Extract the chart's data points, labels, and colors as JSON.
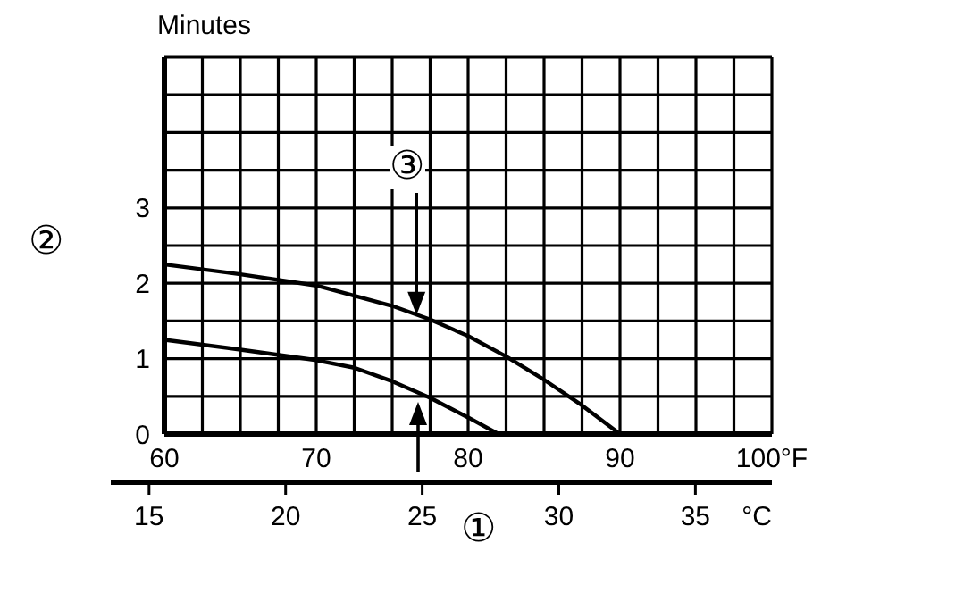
{
  "chart_data": {
    "type": "line",
    "ylabel": "Minutes",
    "xlim": [
      60,
      100
    ],
    "xticks": [
      60,
      {
        "value": 62.5,
        "label": null
      },
      {
        "value": 65,
        "label": null
      },
      {
        "value": 67.5,
        "label": null
      },
      70,
      {
        "value": 72.5,
        "label": null
      },
      {
        "value": 75,
        "label": null
      },
      {
        "value": 77.5,
        "label": null
      },
      80,
      {
        "value": 82.5,
        "label": null
      },
      {
        "value": 85,
        "label": null
      },
      {
        "value": 87.5,
        "label": null
      },
      90,
      {
        "value": 92.5,
        "label": null
      },
      {
        "value": 95,
        "label": null
      },
      {
        "value": 97.5,
        "label": null
      },
      {
        "value": 100,
        "label": "100°F"
      }
    ],
    "ylim": [
      0,
      5
    ],
    "yticks": [
      0,
      {
        "value": 0.5,
        "label": null
      },
      1,
      {
        "value": 1.5,
        "label": null
      },
      2,
      {
        "value": 2.5,
        "label": null
      },
      3,
      {
        "value": 3.5,
        "label": null
      },
      {
        "value": 4,
        "label": null
      },
      {
        "value": 4.5,
        "label": null
      },
      {
        "value": 5,
        "label": null
      }
    ],
    "x2lim": [
      13.6,
      37.8
    ],
    "x2ticks": [
      15,
      20,
      25,
      30,
      35
    ],
    "x2label": "°C",
    "grid": true,
    "legend": false,
    "marker": "none",
    "line_style": "solid",
    "series": [
      {
        "color": "#000000",
        "x": [
          60,
          65,
          70,
          75,
          77.5,
          80,
          82.5,
          85,
          87.5,
          90
        ],
        "values": [
          2.25,
          2.12,
          1.97,
          1.7,
          1.52,
          1.3,
          1.03,
          0.72,
          0.38,
          0
        ]
      },
      {
        "color": "#000000",
        "x": [
          60,
          65,
          70,
          72.5,
          75,
          77.5,
          80,
          82
        ],
        "values": [
          1.25,
          1.12,
          0.98,
          0.88,
          0.7,
          0.48,
          0.22,
          0
        ]
      }
    ],
    "annotations": [
      "①",
      "②",
      {
        "text": "③",
        "x": 76.6,
        "y": 1.58
      }
    ]
  }
}
